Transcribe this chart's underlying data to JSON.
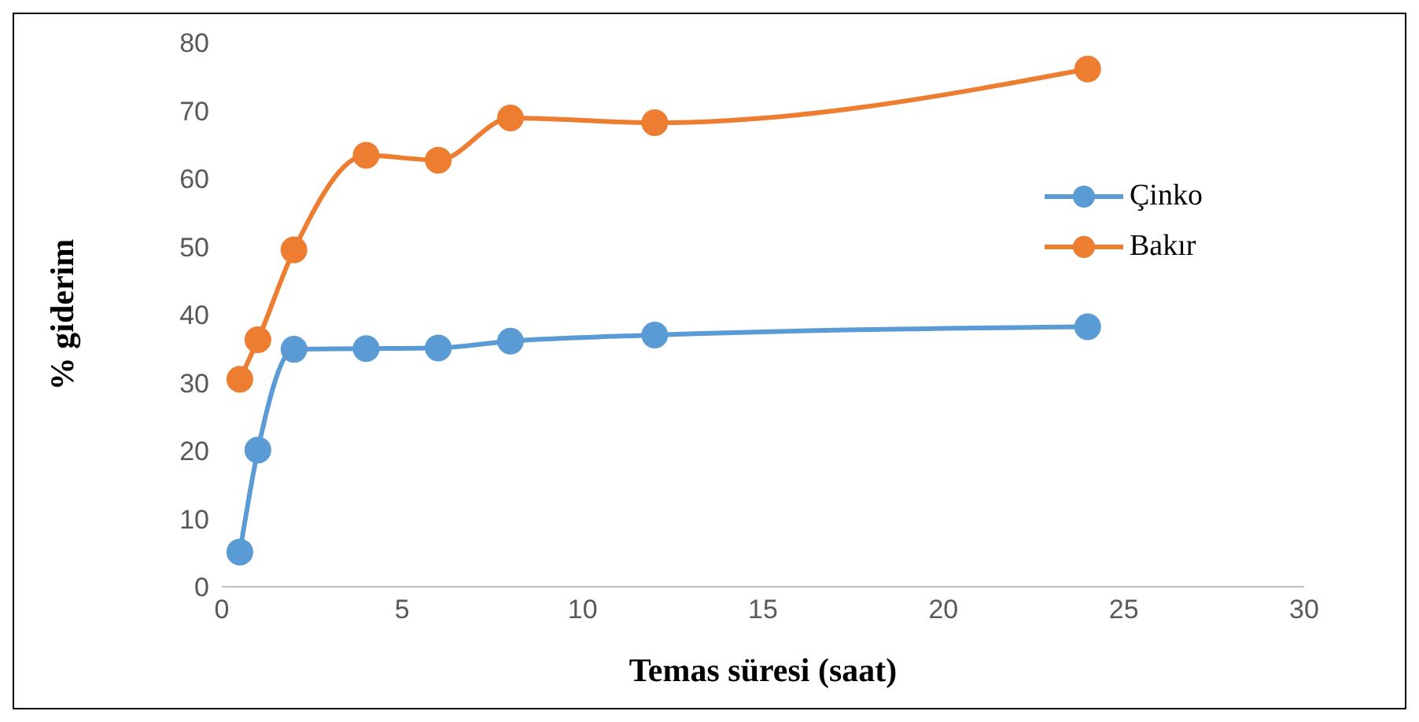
{
  "chart_data": {
    "type": "line",
    "xlabel": "Temas süresi (saat)",
    "ylabel": "% giderim",
    "xlim": [
      0,
      30
    ],
    "xticks": [
      0,
      5,
      10,
      15,
      20,
      25,
      30
    ],
    "ylim": [
      0,
      80
    ],
    "yticks": [
      0,
      10,
      20,
      30,
      40,
      50,
      60,
      70,
      80
    ],
    "grid": false,
    "legend": "right",
    "marker": "circle",
    "line_style": "solid",
    "series": [
      {
        "name": "Çinko",
        "color": "#5b9bd5",
        "x": [
          0.5,
          1,
          2,
          4,
          6,
          8,
          12,
          24
        ],
        "values": [
          5.1,
          20.1,
          34.9,
          35,
          35.1,
          36.1,
          37,
          38.2
        ]
      },
      {
        "name": "Bakır",
        "color": "#ed7d31",
        "x": [
          0.5,
          1,
          2,
          4,
          6,
          8,
          12,
          24
        ],
        "values": [
          30.5,
          36.3,
          49.5,
          63.4,
          62.7,
          68.9,
          68.2,
          76.1
        ]
      }
    ]
  }
}
